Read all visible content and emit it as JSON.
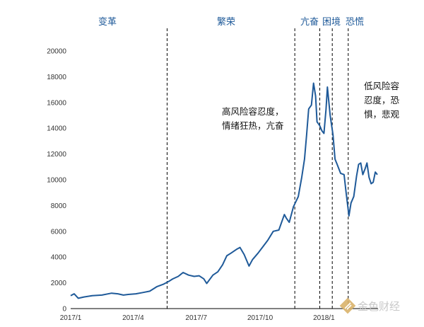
{
  "chart_data": {
    "type": "line",
    "title": "",
    "xlabel": "",
    "ylabel": "",
    "ylim": [
      0,
      20000
    ],
    "yticks": [
      0,
      2000,
      4000,
      6000,
      8000,
      10000,
      12000,
      14000,
      16000,
      18000,
      20000
    ],
    "xlim": [
      "2017-01-01",
      "2018-03-20"
    ],
    "xticks": [
      {
        "date": "2017-01-01",
        "label": "2017/1"
      },
      {
        "date": "2017-04-01",
        "label": "2017/4"
      },
      {
        "date": "2017-07-01",
        "label": "2017/7"
      },
      {
        "date": "2017-10-01",
        "label": "2017/10"
      },
      {
        "date": "2018-01-01",
        "label": "2018/1"
      }
    ],
    "grid": false,
    "line_color": "#1f5a99",
    "series": [
      {
        "x": [
          "2017-01-01",
          "2017-01-06",
          "2017-01-12",
          "2017-01-20",
          "2017-02-01",
          "2017-02-15",
          "2017-03-01",
          "2017-03-10",
          "2017-03-18",
          "2017-03-25",
          "2017-04-05",
          "2017-04-15",
          "2017-04-25",
          "2017-05-05",
          "2017-05-15",
          "2017-05-22",
          "2017-05-28",
          "2017-06-05",
          "2017-06-12",
          "2017-06-20",
          "2017-06-28",
          "2017-07-05",
          "2017-07-12",
          "2017-07-16",
          "2017-07-25",
          "2017-08-01",
          "2017-08-08",
          "2017-08-14",
          "2017-08-20",
          "2017-08-28",
          "2017-09-02",
          "2017-09-08",
          "2017-09-15",
          "2017-09-20",
          "2017-09-28",
          "2017-10-05",
          "2017-10-12",
          "2017-10-20",
          "2017-10-28",
          "2017-11-05",
          "2017-11-08",
          "2017-11-12",
          "2017-11-18",
          "2017-11-25",
          "2017-11-30",
          "2017-12-04",
          "2017-12-07",
          "2017-12-10",
          "2017-12-14",
          "2017-12-17",
          "2017-12-20",
          "2017-12-22",
          "2017-12-26",
          "2017-12-29",
          "2018-01-01",
          "2018-01-04",
          "2018-01-06",
          "2018-01-10",
          "2018-01-14",
          "2018-01-17",
          "2018-01-20",
          "2018-01-25",
          "2018-01-30",
          "2018-02-02",
          "2018-02-06",
          "2018-02-09",
          "2018-02-13",
          "2018-02-17",
          "2018-02-20",
          "2018-02-23",
          "2018-02-26",
          "2018-03-01",
          "2018-03-04",
          "2018-03-07",
          "2018-03-10",
          "2018-03-13",
          "2018-03-16",
          "2018-03-19"
        ],
        "values": [
          1000,
          1150,
          800,
          900,
          1000,
          1050,
          1200,
          1150,
          1050,
          1100,
          1150,
          1250,
          1350,
          1700,
          1900,
          2100,
          2300,
          2500,
          2800,
          2600,
          2500,
          2550,
          2300,
          1950,
          2600,
          2850,
          3400,
          4100,
          4300,
          4600,
          4750,
          4200,
          3300,
          3800,
          4300,
          4800,
          5300,
          6000,
          6100,
          7300,
          7000,
          6700,
          7900,
          8700,
          10200,
          11600,
          13500,
          15500,
          15800,
          17500,
          16500,
          14500,
          14200,
          13800,
          13600,
          15500,
          17200,
          15000,
          13500,
          11600,
          11200,
          10500,
          10400,
          9000,
          7200,
          8200,
          8700,
          10300,
          11200,
          11300,
          10400,
          10800,
          11300,
          10200,
          9700,
          9800,
          10600,
          10400
        ]
      }
    ],
    "phase_dividers": [
      "2017-05-20",
      "2017-11-20",
      "2017-12-26",
      "2018-01-13",
      "2018-02-05"
    ],
    "phase_labels": [
      "变革",
      "繁荣",
      "亢奋",
      "困境",
      "恐慌"
    ],
    "annotations": [
      "高风险容忍度，\n情绪狂热，亢奋",
      "低风险容\n忍度，恐\n惧，悲观"
    ]
  },
  "watermark": "金色财经"
}
